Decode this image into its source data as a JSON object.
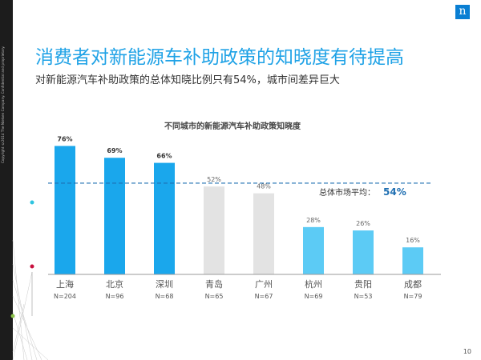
{
  "slide": {
    "title": "消费者对新能源车补助政策的知晓度有待提高",
    "subtitle": "对新能源汽车补助政策的总体知晓比例只有54%，城市间差异巨大",
    "page_number": "10",
    "logo_letter": "n",
    "copyright": "Copyright ©2014 The Nielsen Company. Confidential and proprietary."
  },
  "chart_data": {
    "type": "bar",
    "title": "不同城市的新能源汽车补助政策知晓度",
    "categories": [
      "上海",
      "北京",
      "深圳",
      "青岛",
      "广州",
      "杭州",
      "贵阳",
      "成都"
    ],
    "sample_sizes": [
      "N=204",
      "N=96",
      "N=68",
      "N=65",
      "N=67",
      "N=69",
      "N=53",
      "N=79"
    ],
    "values": [
      76,
      69,
      66,
      52,
      48,
      28,
      26,
      16
    ],
    "value_labels": [
      "76%",
      "69%",
      "66%",
      "52%",
      "48%",
      "28%",
      "26%",
      "16%"
    ],
    "bar_groups": [
      "high",
      "high",
      "high",
      "mid",
      "mid",
      "low",
      "low",
      "low"
    ],
    "group_colors": {
      "high": "#1aa7ec",
      "mid": "#e3e3e3",
      "low": "#5ccbf5"
    },
    "ylim": [
      0,
      80
    ],
    "reference_line": {
      "value": 54,
      "label": "总体市场平均：",
      "value_label": "54%",
      "color": "#1f6fb2"
    },
    "grid": false
  }
}
